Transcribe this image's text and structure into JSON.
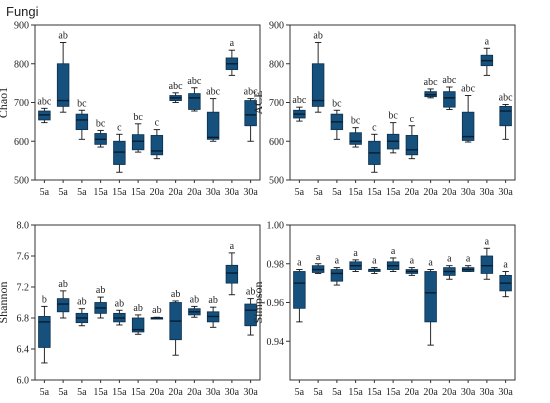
{
  "figure_title": "Fungi",
  "colors": {
    "box_fill": "#16507c",
    "box_stroke": "#0b2f4d",
    "median": "#051d30",
    "axis": "#333333"
  },
  "chart_data": [
    {
      "type": "box",
      "id": "chao1",
      "ylabel": "Chao1",
      "ylim": [
        500,
        900
      ],
      "yticks": [
        500,
        600,
        700,
        800,
        900
      ],
      "yticklabels": [
        "500",
        "600",
        "700",
        "800",
        "900"
      ],
      "categories": [
        "5a",
        "5a",
        "5a",
        "15a",
        "15a",
        "15a",
        "20a",
        "20a",
        "20a",
        "30a",
        "30a",
        "30a"
      ],
      "boxes": [
        {
          "min": 648,
          "q1": 655,
          "median": 668,
          "q3": 678,
          "max": 685,
          "label": "abc"
        },
        {
          "min": 675,
          "q1": 690,
          "median": 705,
          "q3": 800,
          "max": 855,
          "label": "ab"
        },
        {
          "min": 605,
          "q1": 630,
          "median": 655,
          "q3": 670,
          "max": 680,
          "label": "bc"
        },
        {
          "min": 585,
          "q1": 592,
          "median": 605,
          "q3": 620,
          "max": 628,
          "label": "bc"
        },
        {
          "min": 520,
          "q1": 540,
          "median": 572,
          "q3": 600,
          "max": 618,
          "label": "c"
        },
        {
          "min": 572,
          "q1": 578,
          "median": 600,
          "q3": 617,
          "max": 645,
          "label": "bc"
        },
        {
          "min": 555,
          "q1": 565,
          "median": 575,
          "q3": 615,
          "max": 630,
          "label": "c"
        },
        {
          "min": 700,
          "q1": 705,
          "median": 712,
          "q3": 718,
          "max": 725,
          "label": "abc"
        },
        {
          "min": 678,
          "q1": 682,
          "median": 712,
          "q3": 723,
          "max": 738,
          "label": "abc"
        },
        {
          "min": 600,
          "q1": 605,
          "median": 610,
          "q3": 675,
          "max": 710,
          "label": "abc"
        },
        {
          "min": 770,
          "q1": 785,
          "median": 800,
          "q3": 815,
          "max": 835,
          "label": "a"
        },
        {
          "min": 600,
          "q1": 640,
          "median": 668,
          "q3": 705,
          "max": 710,
          "label": "abc"
        }
      ]
    },
    {
      "type": "box",
      "id": "ace",
      "ylabel": "ACE",
      "ylim": [
        500,
        900
      ],
      "yticks": [
        500,
        600,
        700,
        800,
        900
      ],
      "yticklabels": [
        "500",
        "600",
        "700",
        "800",
        "900"
      ],
      "categories": [
        "5a",
        "5a",
        "5a",
        "15a",
        "15a",
        "15a",
        "20a",
        "20a",
        "20a",
        "30a",
        "30a",
        "30a"
      ],
      "boxes": [
        {
          "min": 652,
          "q1": 660,
          "median": 670,
          "q3": 680,
          "max": 688,
          "label": "abc"
        },
        {
          "min": 675,
          "q1": 690,
          "median": 705,
          "q3": 800,
          "max": 855,
          "label": "ab"
        },
        {
          "min": 605,
          "q1": 630,
          "median": 650,
          "q3": 670,
          "max": 680,
          "label": "bc"
        },
        {
          "min": 585,
          "q1": 592,
          "median": 600,
          "q3": 622,
          "max": 635,
          "label": "bc"
        },
        {
          "min": 520,
          "q1": 540,
          "median": 570,
          "q3": 600,
          "max": 618,
          "label": "c"
        },
        {
          "min": 570,
          "q1": 580,
          "median": 600,
          "q3": 618,
          "max": 648,
          "label": "bc"
        },
        {
          "min": 555,
          "q1": 565,
          "median": 578,
          "q3": 615,
          "max": 640,
          "label": "c"
        },
        {
          "min": 712,
          "q1": 715,
          "median": 720,
          "q3": 728,
          "max": 735,
          "label": "abc"
        },
        {
          "min": 682,
          "q1": 688,
          "median": 712,
          "q3": 728,
          "max": 740,
          "label": "abc"
        },
        {
          "min": 598,
          "q1": 602,
          "median": 612,
          "q3": 675,
          "max": 718,
          "label": "abc"
        },
        {
          "min": 770,
          "q1": 795,
          "median": 808,
          "q3": 822,
          "max": 840,
          "label": "a"
        },
        {
          "min": 605,
          "q1": 640,
          "median": 678,
          "q3": 690,
          "max": 695,
          "label": "abc"
        }
      ]
    },
    {
      "type": "box",
      "id": "shannon",
      "ylabel": "Shannon",
      "ylim": [
        6.0,
        8.0
      ],
      "yticks": [
        6.0,
        6.4,
        6.8,
        7.2,
        7.6,
        8.0
      ],
      "yticklabels": [
        "6.0",
        "6.4",
        "6.8",
        "7.2",
        "7.6",
        "8.0"
      ],
      "categories": [
        "5a",
        "5a",
        "5a",
        "15a",
        "15a",
        "15a",
        "20a",
        "20a",
        "20a",
        "30a",
        "30a",
        "30a"
      ],
      "boxes": [
        {
          "min": 6.22,
          "q1": 6.42,
          "median": 6.75,
          "q3": 6.82,
          "max": 6.95,
          "label": "b"
        },
        {
          "min": 6.8,
          "q1": 6.88,
          "median": 6.98,
          "q3": 7.05,
          "max": 7.15,
          "label": "ab"
        },
        {
          "min": 6.7,
          "q1": 6.74,
          "median": 6.8,
          "q3": 6.86,
          "max": 6.92,
          "label": "ab"
        },
        {
          "min": 6.8,
          "q1": 6.86,
          "median": 6.93,
          "q3": 7.0,
          "max": 7.07,
          "label": "ab"
        },
        {
          "min": 6.71,
          "q1": 6.75,
          "median": 6.8,
          "q3": 6.86,
          "max": 6.9,
          "label": "ab"
        },
        {
          "min": 6.59,
          "q1": 6.62,
          "median": 6.65,
          "q3": 6.8,
          "max": 6.84,
          "label": "ab"
        },
        {
          "min": 6.79,
          "q1": 6.795,
          "median": 6.8,
          "q3": 6.805,
          "max": 6.81,
          "label": "ab"
        },
        {
          "min": 6.32,
          "q1": 6.52,
          "median": 6.76,
          "q3": 7.0,
          "max": 7.02,
          "label": "ab"
        },
        {
          "min": 6.81,
          "q1": 6.84,
          "median": 6.88,
          "q3": 6.92,
          "max": 6.95,
          "label": "ab"
        },
        {
          "min": 6.68,
          "q1": 6.75,
          "median": 6.82,
          "q3": 6.88,
          "max": 6.94,
          "label": "ab"
        },
        {
          "min": 7.1,
          "q1": 7.25,
          "median": 7.38,
          "q3": 7.48,
          "max": 7.64,
          "label": "a"
        },
        {
          "min": 6.58,
          "q1": 6.7,
          "median": 6.9,
          "q3": 6.98,
          "max": 7.05,
          "label": "ab"
        }
      ]
    },
    {
      "type": "box",
      "id": "simpson",
      "ylabel": "Simpson",
      "ylim": [
        0.92,
        1.0
      ],
      "yticks": [
        0.94,
        0.96,
        0.98,
        1.0
      ],
      "yticklabels": [
        "0.94",
        "0.96",
        "0.98",
        "1.00"
      ],
      "categories": [
        "5a",
        "5a",
        "5a",
        "15a",
        "15a",
        "15a",
        "20a",
        "20a",
        "20a",
        "30a",
        "30a",
        "30a"
      ],
      "boxes": [
        {
          "min": 0.95,
          "q1": 0.957,
          "median": 0.97,
          "q3": 0.976,
          "max": 0.977,
          "label": "a"
        },
        {
          "min": 0.975,
          "q1": 0.9755,
          "median": 0.977,
          "q3": 0.979,
          "max": 0.98,
          "label": "a"
        },
        {
          "min": 0.969,
          "q1": 0.971,
          "median": 0.975,
          "q3": 0.977,
          "max": 0.978,
          "label": "a"
        },
        {
          "min": 0.976,
          "q1": 0.977,
          "median": 0.979,
          "q3": 0.981,
          "max": 0.982,
          "label": "a"
        },
        {
          "min": 0.975,
          "q1": 0.976,
          "median": 0.977,
          "q3": 0.977,
          "max": 0.978,
          "label": "a"
        },
        {
          "min": 0.976,
          "q1": 0.977,
          "median": 0.979,
          "q3": 0.981,
          "max": 0.983,
          "label": "a"
        },
        {
          "min": 0.974,
          "q1": 0.975,
          "median": 0.976,
          "q3": 0.977,
          "max": 0.978,
          "label": "a"
        },
        {
          "min": 0.938,
          "q1": 0.95,
          "median": 0.965,
          "q3": 0.976,
          "max": 0.977,
          "label": "a"
        },
        {
          "min": 0.972,
          "q1": 0.974,
          "median": 0.976,
          "q3": 0.978,
          "max": 0.979,
          "label": "a"
        },
        {
          "min": 0.976,
          "q1": 0.976,
          "median": 0.977,
          "q3": 0.978,
          "max": 0.979,
          "label": "a"
        },
        {
          "min": 0.972,
          "q1": 0.975,
          "median": 0.979,
          "q3": 0.984,
          "max": 0.988,
          "label": "a"
        },
        {
          "min": 0.963,
          "q1": 0.966,
          "median": 0.97,
          "q3": 0.974,
          "max": 0.976,
          "label": "a"
        }
      ]
    }
  ]
}
